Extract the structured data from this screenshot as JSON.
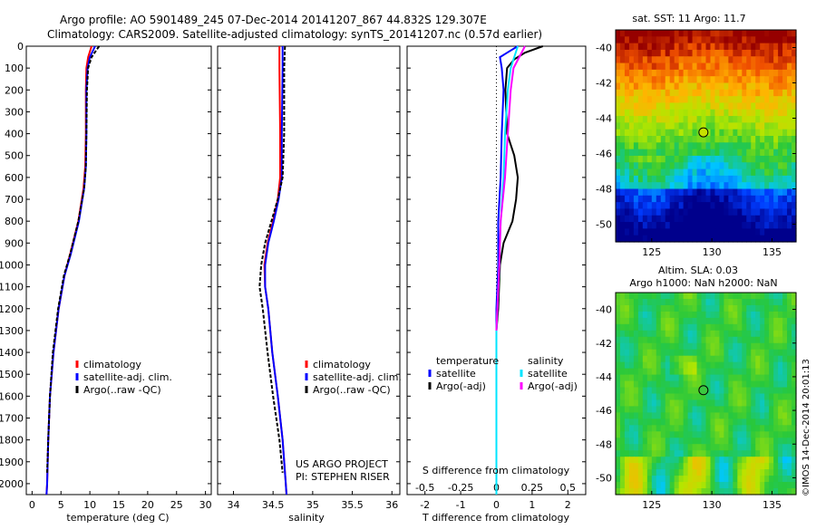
{
  "header": {
    "line1": "Argo profile: AO 5901489_245 07-Dec-2014 20141207_867 44.832S 129.307E",
    "line2": "Climatology: CARS2009. Satellite-adjusted climatology: synTS_20141207.nc (0.57d earlier)"
  },
  "side_label": "©IMOS 14-Dec-2014 20:01:13",
  "colors": {
    "climatology": "#ff0000",
    "satellite": "#0000ff",
    "argo": "#000000",
    "sal_satellite": "#00e5ff",
    "sal_argo": "#ff00ff"
  },
  "chart_data": [
    {
      "id": "temperature",
      "type": "line",
      "xlabel": "temperature (deg C)",
      "xlim": [
        -1,
        31
      ],
      "xticks": [
        0,
        5,
        10,
        15,
        20,
        25,
        30
      ],
      "ylim": [
        2050,
        0
      ],
      "yticks": [
        0,
        100,
        200,
        300,
        400,
        500,
        600,
        700,
        800,
        900,
        1000,
        1100,
        1200,
        1300,
        1400,
        1500,
        1600,
        1700,
        1800,
        1900,
        2000
      ],
      "legend": [
        "climatology",
        "satellite-adj. clim.",
        "Argo(..raw -QC)"
      ],
      "series": [
        {
          "name": "climatology",
          "color": "#ff0000",
          "dash": "",
          "points": [
            [
              10.3,
              0
            ],
            [
              9.7,
              50
            ],
            [
              9.4,
              100
            ],
            [
              9.3,
              200
            ],
            [
              9.3,
              400
            ],
            [
              9.2,
              550
            ],
            [
              8.9,
              650
            ],
            [
              8.0,
              800
            ],
            [
              6.6,
              950
            ],
            [
              5.6,
              1050
            ],
            [
              4.6,
              1200
            ],
            [
              3.7,
              1400
            ],
            [
              3.1,
              1600
            ],
            [
              2.8,
              1800
            ],
            [
              2.6,
              2000
            ],
            [
              2.5,
              2050
            ]
          ]
        },
        {
          "name": "satellite-adj. clim.",
          "color": "#0000ff",
          "dash": "",
          "points": [
            [
              10.9,
              0
            ],
            [
              10.0,
              50
            ],
            [
              9.6,
              100
            ],
            [
              9.4,
              200
            ],
            [
              9.4,
              400
            ],
            [
              9.3,
              550
            ],
            [
              9.0,
              650
            ],
            [
              8.1,
              800
            ],
            [
              6.7,
              950
            ],
            [
              5.6,
              1050
            ],
            [
              4.6,
              1200
            ],
            [
              3.7,
              1400
            ],
            [
              3.1,
              1600
            ],
            [
              2.8,
              1800
            ],
            [
              2.6,
              2000
            ],
            [
              2.5,
              2050
            ]
          ]
        },
        {
          "name": "Argo(..raw -QC)",
          "color": "#000000",
          "dash": "4,2",
          "points": [
            [
              11.6,
              0
            ],
            [
              10.3,
              50
            ],
            [
              9.7,
              100
            ],
            [
              9.5,
              200
            ],
            [
              9.4,
              400
            ],
            [
              9.3,
              550
            ],
            [
              9.0,
              650
            ],
            [
              8.0,
              800
            ],
            [
              6.6,
              950
            ],
            [
              5.5,
              1050
            ],
            [
              4.5,
              1200
            ],
            [
              3.6,
              1400
            ],
            [
              3.1,
              1600
            ],
            [
              2.8,
              1800
            ],
            [
              2.6,
              1950
            ]
          ]
        }
      ]
    },
    {
      "id": "salinity",
      "type": "line",
      "xlabel": "salinity",
      "xlim": [
        33.8,
        36.1
      ],
      "xticks": [
        34,
        34.5,
        35,
        35.5,
        36
      ],
      "xticklabels": [
        "34",
        "34.5",
        "35",
        "35.5",
        "36"
      ],
      "ylim": [
        2050,
        0
      ],
      "legend": [
        "climatology",
        "satellite-adj. clim.",
        "Argo(..raw -QC)"
      ],
      "annotations": [
        "US ARGO PROJECT",
        "PI: STEPHEN RISER"
      ],
      "series": [
        {
          "name": "climatology",
          "color": "#ff0000",
          "dash": "",
          "points": [
            [
              34.58,
              0
            ],
            [
              34.58,
              100
            ],
            [
              34.59,
              400
            ],
            [
              34.59,
              600
            ],
            [
              34.56,
              700
            ],
            [
              34.5,
              800
            ],
            [
              34.43,
              900
            ],
            [
              34.39,
              1000
            ],
            [
              34.4,
              1100
            ],
            [
              34.44,
              1200
            ],
            [
              34.49,
              1400
            ],
            [
              34.56,
              1600
            ],
            [
              34.62,
              1800
            ],
            [
              34.66,
              2000
            ],
            [
              34.67,
              2050
            ]
          ]
        },
        {
          "name": "satellite-adj. clim.",
          "color": "#0000ff",
          "dash": "",
          "points": [
            [
              34.62,
              0
            ],
            [
              34.62,
              100
            ],
            [
              34.61,
              400
            ],
            [
              34.61,
              600
            ],
            [
              34.57,
              700
            ],
            [
              34.51,
              800
            ],
            [
              34.44,
              900
            ],
            [
              34.4,
              1000
            ],
            [
              34.4,
              1100
            ],
            [
              34.44,
              1200
            ],
            [
              34.49,
              1400
            ],
            [
              34.56,
              1600
            ],
            [
              34.62,
              1800
            ],
            [
              34.66,
              2000
            ],
            [
              34.67,
              2050
            ]
          ]
        },
        {
          "name": "Argo(..raw -QC)",
          "color": "#000000",
          "dash": "4,2",
          "points": [
            [
              34.65,
              0
            ],
            [
              34.64,
              100
            ],
            [
              34.64,
              400
            ],
            [
              34.62,
              600
            ],
            [
              34.56,
              700
            ],
            [
              34.48,
              800
            ],
            [
              34.4,
              900
            ],
            [
              34.35,
              1000
            ],
            [
              34.33,
              1100
            ],
            [
              34.37,
              1200
            ],
            [
              34.43,
              1400
            ],
            [
              34.5,
              1600
            ],
            [
              34.58,
              1800
            ],
            [
              34.62,
              1950
            ]
          ]
        }
      ]
    },
    {
      "id": "difference",
      "type": "line",
      "xlabel": "T difference from climatology",
      "xlabel2": "S difference from climatology",
      "xlim": [
        -2.5,
        2.5
      ],
      "xticks": [
        -2,
        -1,
        0,
        1,
        2
      ],
      "xticks2": [
        -0.5,
        -0.25,
        0,
        0.25,
        0.5
      ],
      "x2scale": 4,
      "ylim": [
        2050,
        0
      ],
      "legend_temperature": [
        "temperature",
        "satellite",
        "Argo(-adj)"
      ],
      "legend_salinity": [
        "salinity",
        "satellite",
        "Argo(-adj)"
      ],
      "series": [
        {
          "name": "T satellite",
          "color": "#0000ff",
          "points": [
            [
              0.6,
              0
            ],
            [
              0.3,
              30
            ],
            [
              0.1,
              50
            ],
            [
              0.15,
              100
            ],
            [
              0.2,
              200
            ],
            [
              0.15,
              400
            ],
            [
              0.12,
              600
            ],
            [
              0.05,
              800
            ],
            [
              0.05,
              1000
            ],
            [
              0.0,
              1200
            ],
            [
              0.0,
              1300
            ]
          ]
        },
        {
          "name": "T Argo",
          "color": "#000000",
          "points": [
            [
              1.3,
              0
            ],
            [
              0.8,
              30
            ],
            [
              0.5,
              60
            ],
            [
              0.3,
              100
            ],
            [
              0.25,
              200
            ],
            [
              0.3,
              400
            ],
            [
              0.5,
              500
            ],
            [
              0.6,
              600
            ],
            [
              0.55,
              700
            ],
            [
              0.45,
              800
            ],
            [
              0.2,
              900
            ],
            [
              0.1,
              1000
            ],
            [
              0.05,
              1200
            ],
            [
              0.0,
              1300
            ]
          ]
        },
        {
          "name": "S satellite",
          "color": "#00e5ff",
          "points": [
            [
              0.15,
              0
            ],
            [
              0.1,
              100
            ],
            [
              0.08,
              200
            ],
            [
              0.06,
              400
            ],
            [
              0.05,
              600
            ],
            [
              0.03,
              800
            ],
            [
              0.02,
              1000
            ],
            [
              0.0,
              1300
            ],
            [
              0.0,
              1600
            ],
            [
              0.0,
              1800
            ],
            [
              0.0,
              2050
            ]
          ]
        },
        {
          "name": "S Argo",
          "color": "#ff00ff",
          "points": [
            [
              0.2,
              0
            ],
            [
              0.12,
              100
            ],
            [
              0.1,
              200
            ],
            [
              0.08,
              400
            ],
            [
              0.06,
              600
            ],
            [
              0.03,
              800
            ],
            [
              0.02,
              1000
            ],
            [
              0.0,
              1300
            ]
          ]
        }
      ]
    },
    {
      "id": "sst_map",
      "type": "heatmap",
      "title": "sat. SST: 11 Argo: 11.7",
      "xlim": [
        122,
        137
      ],
      "ylim": [
        -51,
        -39
      ],
      "xticks": [
        125,
        130,
        135
      ],
      "yticks": [
        -40,
        -42,
        -44,
        -46,
        -48,
        -50
      ],
      "marker": {
        "lon": 129.3,
        "lat": -44.8
      }
    },
    {
      "id": "sla_map",
      "type": "heatmap",
      "title": "Altim. SLA: 0.03",
      "subtitle": "Argo h1000: NaN h2000: NaN",
      "xlim": [
        122,
        137
      ],
      "ylim": [
        -51,
        -39
      ],
      "xticks": [
        125,
        130,
        135
      ],
      "yticks": [
        -40,
        -42,
        -44,
        -46,
        -48,
        -50
      ],
      "marker": {
        "lon": 129.3,
        "lat": -44.8
      }
    }
  ]
}
